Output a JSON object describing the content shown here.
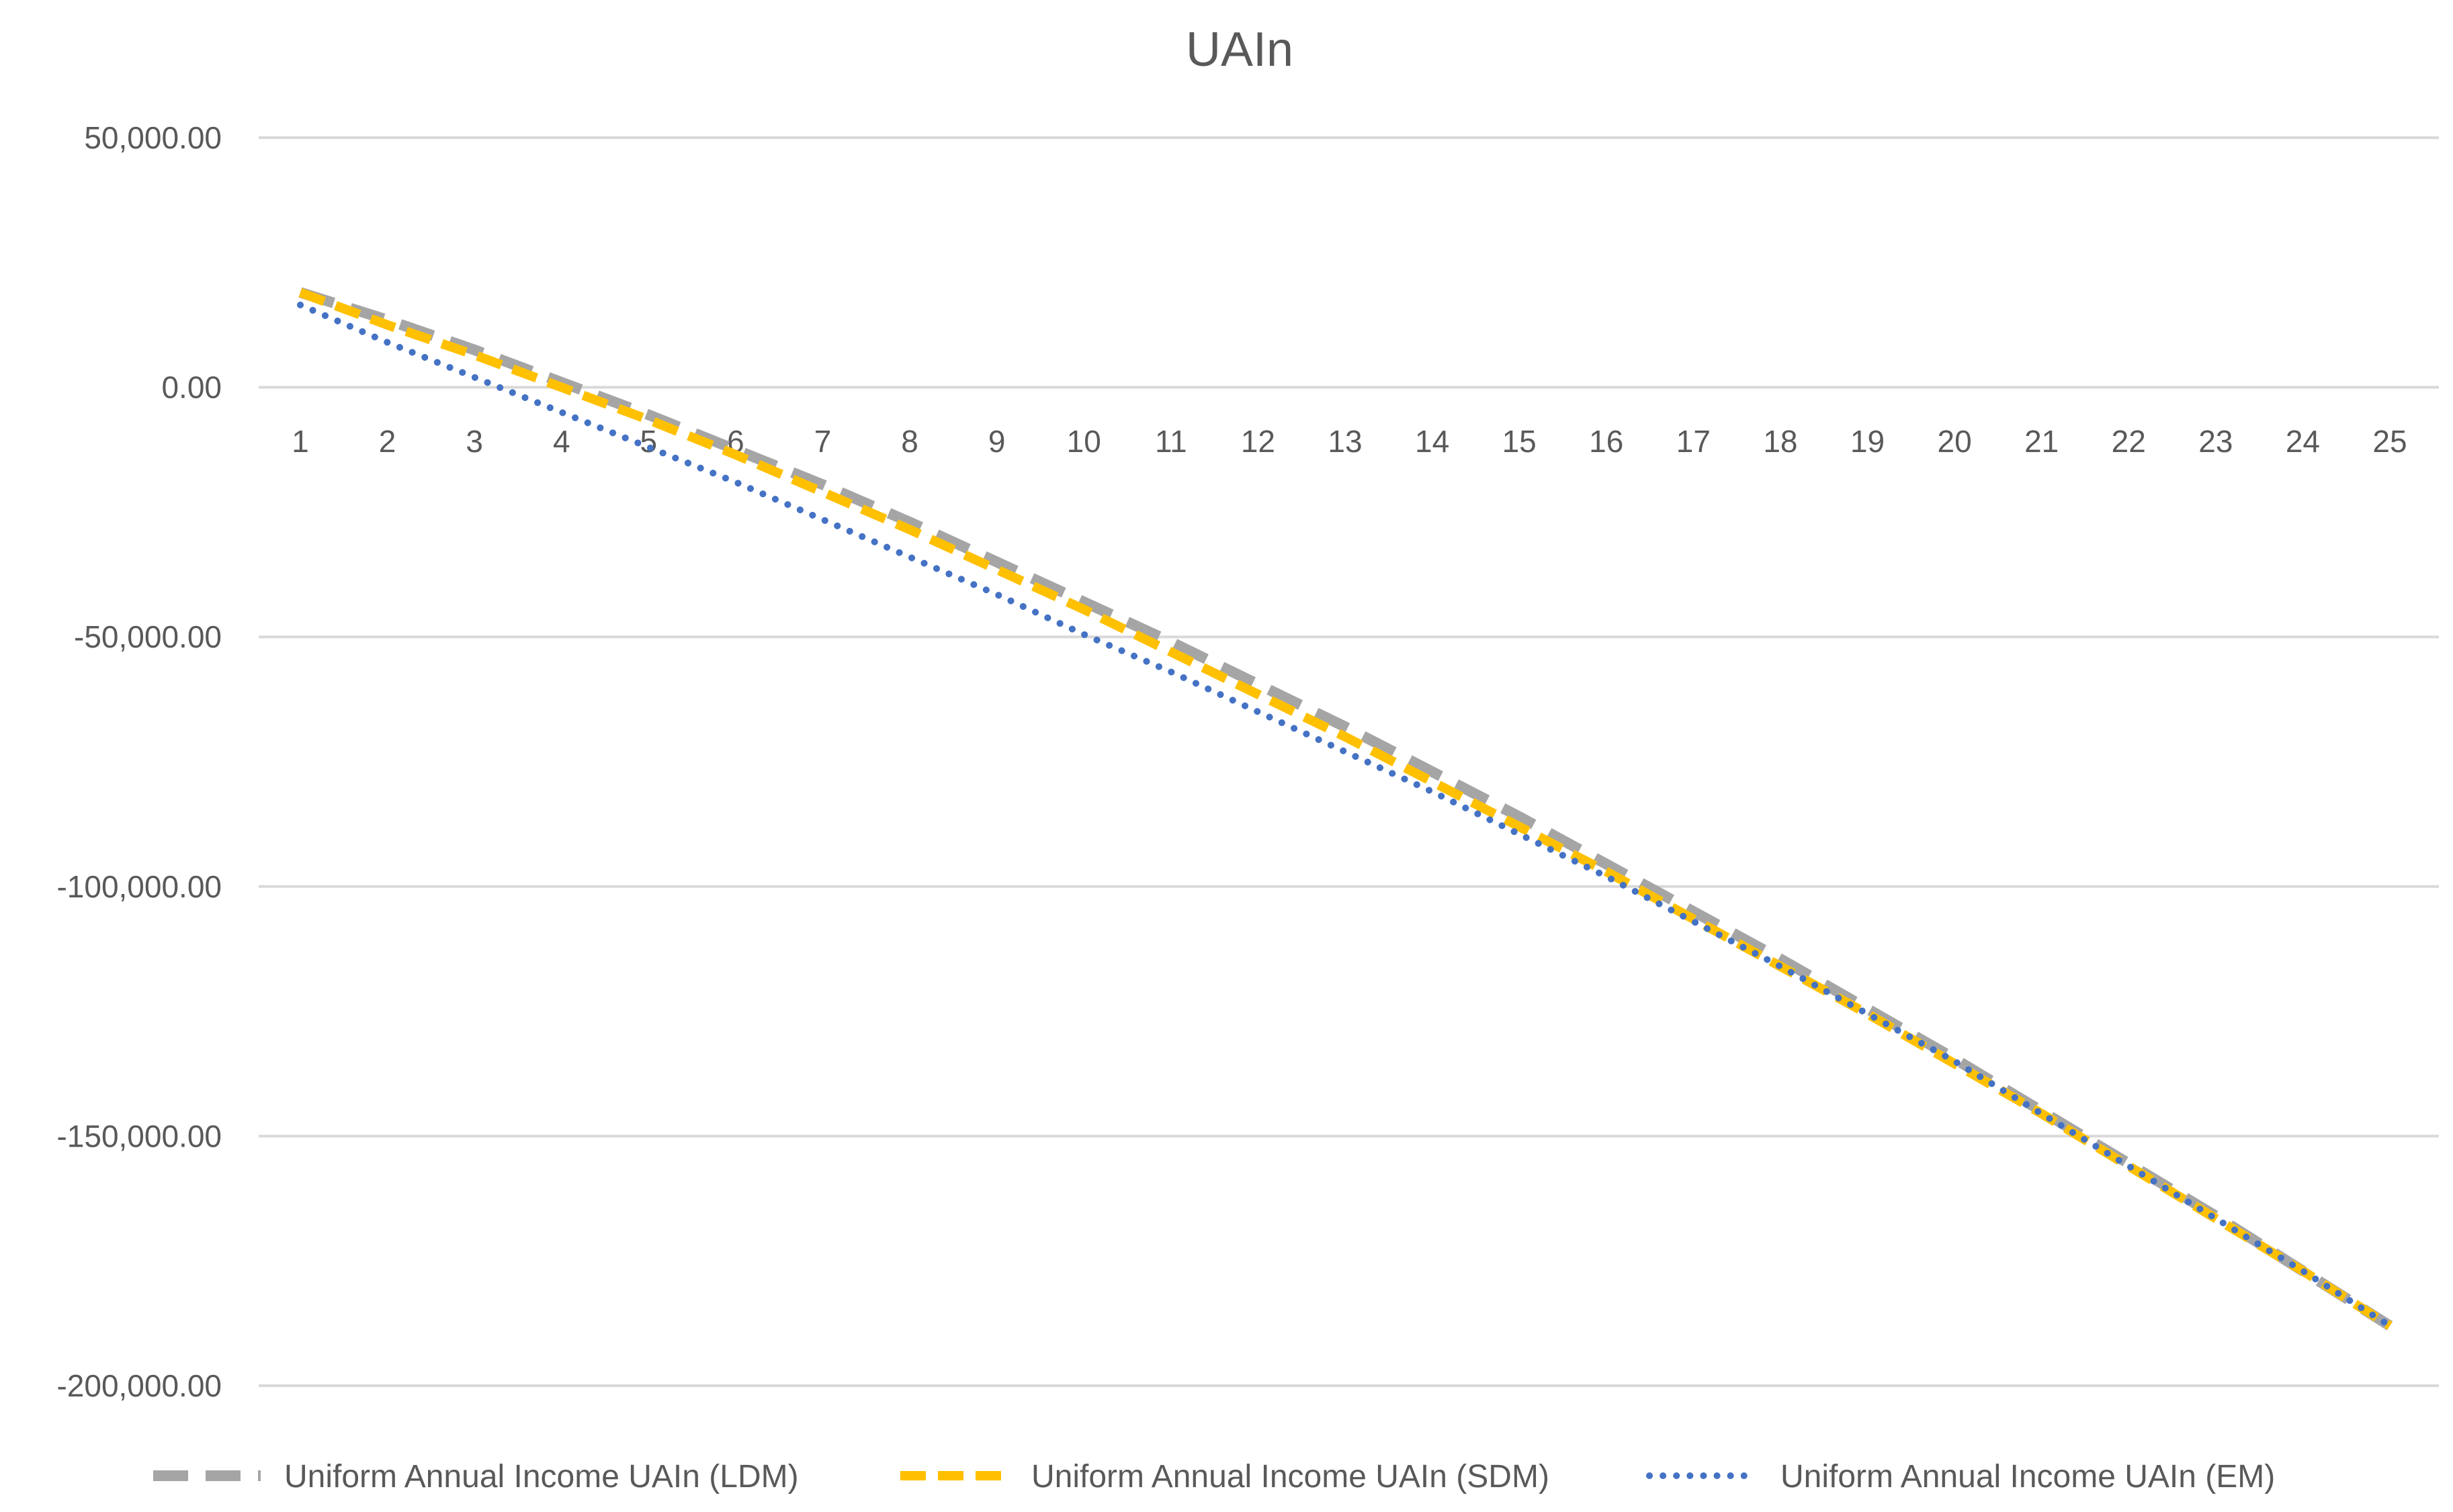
{
  "chart_data": {
    "type": "line",
    "title": "UAIn",
    "xlabel": "",
    "ylabel": "",
    "categories": [
      "1",
      "2",
      "3",
      "4",
      "5",
      "6",
      "7",
      "8",
      "9",
      "10",
      "11",
      "12",
      "13",
      "14",
      "15",
      "16",
      "17",
      "18",
      "19",
      "20",
      "21",
      "22",
      "23",
      "24",
      "25"
    ],
    "ylim": [
      -200000,
      50000
    ],
    "yticks": [
      50000,
      0,
      -50000,
      -100000,
      -150000,
      -200000
    ],
    "ytick_labels": [
      "50,000.00",
      "0.00",
      "-50,000.00",
      "-100,000.00",
      "-150,000.00",
      "-200,000.00"
    ],
    "grid": true,
    "legend_position": "bottom",
    "series": [
      {
        "name": "Uniform Annual Income UAIn (LDM)",
        "color": "#a5a5a5",
        "dash": "dashed-long",
        "values": [
          19000,
          13500,
          7500,
          1000,
          -5500,
          -12500,
          -19500,
          -27000,
          -35000,
          -43000,
          -51000,
          -59500,
          -68000,
          -77000,
          -86000,
          -95500,
          -105000,
          -114500,
          -124500,
          -134500,
          -145000,
          -155500,
          -166000,
          -177000,
          -188000
        ]
      },
      {
        "name": "Uniform Annual Income UAIn (SDM)",
        "color": "#ffc000",
        "dash": "dashed",
        "values": [
          19000,
          12500,
          6500,
          0,
          -6500,
          -13500,
          -21000,
          -28500,
          -36500,
          -44500,
          -53000,
          -61500,
          -70000,
          -79000,
          -88000,
          -97000,
          -106500,
          -116000,
          -125500,
          -135500,
          -145500,
          -156000,
          -166500,
          -177000,
          -188000
        ]
      },
      {
        "name": "Uniform Annual Income UAIn (EM)",
        "color": "#4472c4",
        "dash": "dotted",
        "values": [
          16500,
          9000,
          2000,
          -5000,
          -12000,
          -19000,
          -26500,
          -34000,
          -41500,
          -49500,
          -57000,
          -65000,
          -73000,
          -81000,
          -89500,
          -98000,
          -107000,
          -116000,
          -125500,
          -135000,
          -145500,
          -156000,
          -166500,
          -177000,
          -188000
        ]
      }
    ]
  }
}
